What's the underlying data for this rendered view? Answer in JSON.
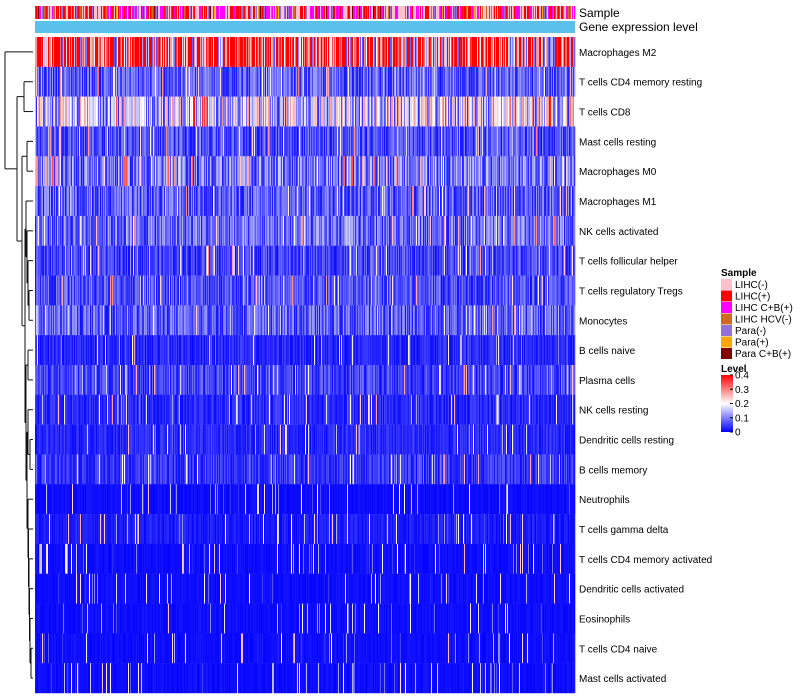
{
  "chart_data": {
    "type": "heatmap",
    "annotation_tracks": [
      "Sample",
      "Gene expression level"
    ],
    "rows": [
      "Macrophages M2",
      "T cells CD4 memory resting",
      "T cells CD8",
      "Mast cells resting",
      "Macrophages M0",
      "Macrophages M1",
      "NK cells activated",
      "T cells follicular helper",
      "T cells regulatory  Tregs",
      "Monocytes",
      "B cells naive",
      "Plasma cells",
      "NK cells resting",
      "Dendritic cells resting",
      "B cells memory",
      "Neutrophils",
      "T cells gamma delta",
      "T cells CD4 memory activated",
      "Dendritic cells activated",
      "Eosinophils",
      "T cells CD4 naive",
      "Mast cells activated"
    ],
    "row_mean_level": [
      0.33,
      0.07,
      0.16,
      0.06,
      0.09,
      0.07,
      0.08,
      0.05,
      0.06,
      0.07,
      0.03,
      0.05,
      0.03,
      0.03,
      0.04,
      0.01,
      0.02,
      0.01,
      0.01,
      0.01,
      0.01,
      0.01
    ],
    "legend_sample": {
      "title": "Sample",
      "items": [
        {
          "label": "LIHC(-)",
          "color": "#ffc0cb"
        },
        {
          "label": "LIHC(+)",
          "color": "#ff0000"
        },
        {
          "label": "LIHC C+B(+)",
          "color": "#ff00ff"
        },
        {
          "label": "LIHC HCV(-)",
          "color": "#d2691e"
        },
        {
          "label": "Para(-)",
          "color": "#9370db"
        },
        {
          "label": "Para(+)",
          "color": "#ffa500"
        },
        {
          "label": "Para C+B(+)",
          "color": "#800000"
        }
      ]
    },
    "legend_level": {
      "title": "Level",
      "ticks": [
        "0.4",
        "0.3",
        "0.2",
        "0.1",
        "0"
      ],
      "range": [
        0,
        0.4
      ],
      "colors": {
        "low": "#0000ff",
        "mid": "#ffffff",
        "high": "#ff0000"
      }
    },
    "gene_expression_color": "#5bc0eb",
    "n_samples": 540
  }
}
